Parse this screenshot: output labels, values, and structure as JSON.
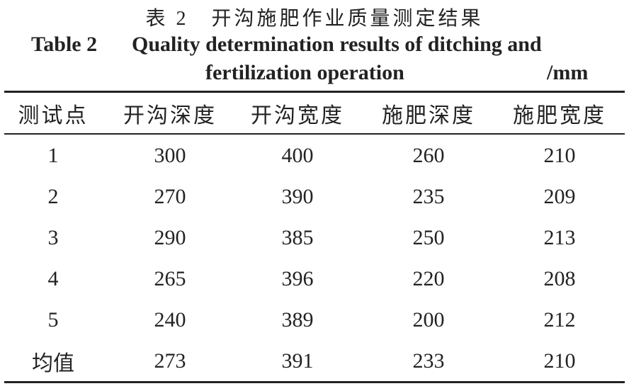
{
  "caption_cn": "表 2　开沟施肥作业质量测定结果",
  "caption_en": {
    "label": "Table 2",
    "lines": [
      "Quality determination results of ditching and",
      "fertilization operation"
    ],
    "unit": "/mm"
  },
  "table": {
    "header": [
      "测试点",
      "开沟深度",
      "开沟宽度",
      "施肥深度",
      "施肥宽度"
    ],
    "rows": [
      [
        "1",
        "300",
        "400",
        "260",
        "210"
      ],
      [
        "2",
        "270",
        "390",
        "235",
        "209"
      ],
      [
        "3",
        "290",
        "385",
        "250",
        "213"
      ],
      [
        "4",
        "265",
        "396",
        "220",
        "208"
      ],
      [
        "5",
        "240",
        "389",
        "200",
        "212"
      ],
      [
        "均值",
        "273",
        "391",
        "233",
        "210"
      ]
    ]
  }
}
